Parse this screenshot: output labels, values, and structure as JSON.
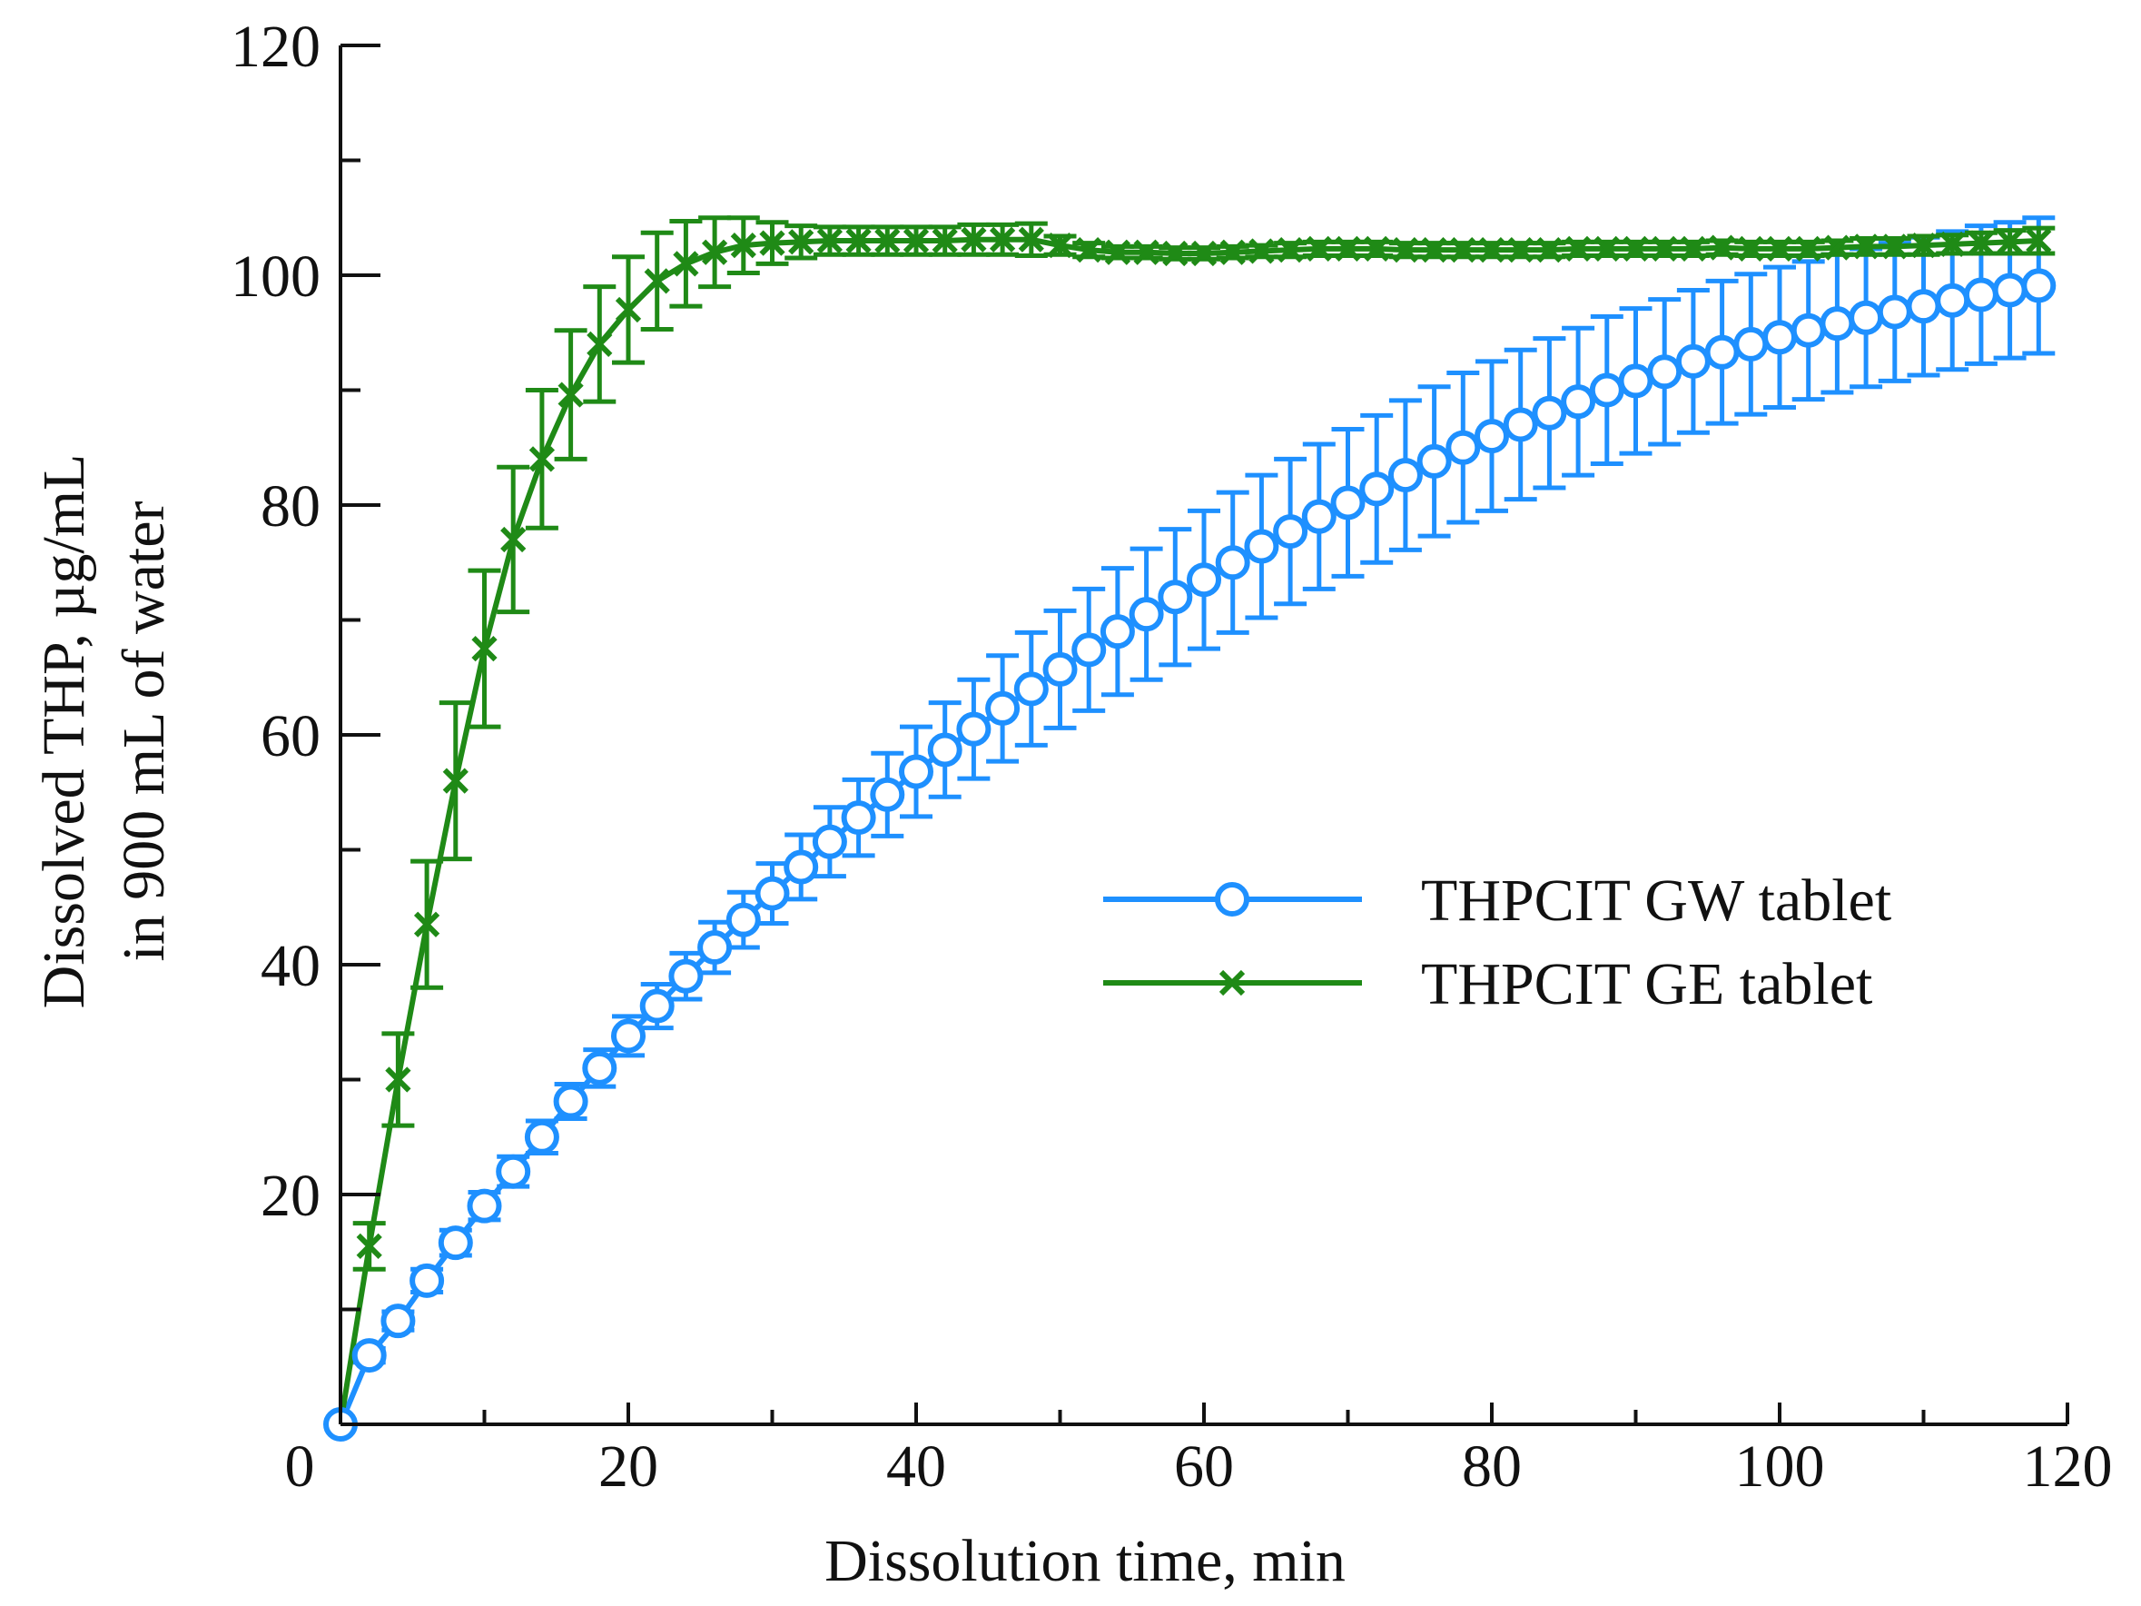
{
  "chart_data": {
    "type": "line",
    "title": "",
    "xlabel": "Dissolution time, min",
    "ylabel_line1": "Dissolved THP, µg/mL",
    "ylabel_line2": "in 900 mL of water",
    "xlim": [
      0,
      120
    ],
    "ylim": [
      0,
      120
    ],
    "x_major_ticks": [
      0,
      20,
      40,
      60,
      80,
      100,
      120
    ],
    "x_tick_labels": [
      "0",
      "20",
      "40",
      "60",
      "80",
      "100",
      "120"
    ],
    "y_major_ticks": [
      20,
      40,
      60,
      80,
      100,
      120
    ],
    "y_tick_labels": [
      "20",
      "40",
      "60",
      "80",
      "100",
      "120"
    ],
    "legend_position": "center-right",
    "series": [
      {
        "name": "THPCIT GW tablet",
        "color": "#1e90ff",
        "marker": "circle",
        "x": [
          0,
          2,
          4,
          6,
          8,
          10,
          12,
          14,
          16,
          18,
          20,
          22,
          24,
          26,
          28,
          30,
          32,
          34,
          36,
          38,
          40,
          42,
          44,
          46,
          48,
          50,
          52,
          54,
          56,
          58,
          60,
          62,
          64,
          66,
          68,
          70,
          72,
          74,
          76,
          78,
          80,
          82,
          84,
          86,
          88,
          90,
          92,
          94,
          96,
          98,
          100,
          102,
          104,
          106,
          108,
          110,
          112,
          114,
          116,
          118
        ],
        "y": [
          0,
          6.0,
          9.0,
          12.5,
          15.8,
          19.0,
          22.0,
          25.0,
          28.1,
          31.0,
          33.8,
          36.4,
          39.0,
          41.5,
          43.9,
          46.2,
          48.5,
          50.7,
          52.8,
          54.8,
          56.8,
          58.7,
          60.5,
          62.3,
          64.0,
          65.7,
          67.4,
          69.0,
          70.5,
          72.0,
          73.5,
          75.0,
          76.4,
          77.7,
          79.0,
          80.2,
          81.4,
          82.6,
          83.8,
          85.0,
          86.0,
          87.0,
          88.0,
          89.0,
          90.0,
          90.8,
          91.6,
          92.5,
          93.3,
          94.0,
          94.6,
          95.2,
          95.8,
          96.3,
          96.8,
          97.3,
          97.8,
          98.3,
          98.7,
          99.1
        ],
        "error": [
          0,
          0.6,
          0.8,
          1.0,
          1.1,
          1.2,
          1.3,
          1.4,
          1.5,
          1.6,
          1.7,
          1.9,
          2.0,
          2.2,
          2.4,
          2.6,
          2.8,
          3.0,
          3.3,
          3.6,
          3.9,
          4.1,
          4.3,
          4.6,
          4.9,
          5.1,
          5.3,
          5.5,
          5.7,
          5.9,
          6.0,
          6.1,
          6.2,
          6.3,
          6.3,
          6.4,
          6.4,
          6.5,
          6.5,
          6.5,
          6.5,
          6.5,
          6.5,
          6.4,
          6.4,
          6.3,
          6.3,
          6.2,
          6.2,
          6.1,
          6.1,
          6.0,
          6.0,
          6.0,
          6.0,
          6.0,
          6.0,
          6.0,
          5.9,
          5.9
        ]
      },
      {
        "name": "THPCIT GE tablet",
        "color": "#1f8a16",
        "marker": "x",
        "x": [
          0,
          2,
          4,
          6,
          8,
          10,
          12,
          14,
          16,
          18,
          20,
          22,
          24,
          26,
          28,
          30,
          32,
          34,
          36,
          38,
          40,
          42,
          44,
          46,
          48,
          50,
          52,
          54,
          56,
          58,
          60,
          62,
          64,
          66,
          68,
          70,
          72,
          74,
          76,
          78,
          80,
          82,
          84,
          86,
          88,
          90,
          92,
          94,
          96,
          98,
          100,
          102,
          104,
          106,
          108,
          110,
          112,
          114,
          116,
          118
        ],
        "y": [
          0,
          15.5,
          30.0,
          43.5,
          56.0,
          67.5,
          77.0,
          84.0,
          89.6,
          94.0,
          97.0,
          99.5,
          101.0,
          102.0,
          102.6,
          102.8,
          102.9,
          103.0,
          103.0,
          103.0,
          103.0,
          103.0,
          103.1,
          103.1,
          103.1,
          102.6,
          102.2,
          102.0,
          102.0,
          101.9,
          101.9,
          102.0,
          102.1,
          102.2,
          102.3,
          102.3,
          102.3,
          102.2,
          102.2,
          102.2,
          102.2,
          102.2,
          102.2,
          102.3,
          102.3,
          102.3,
          102.3,
          102.3,
          102.4,
          102.3,
          102.3,
          102.3,
          102.4,
          102.5,
          102.5,
          102.6,
          102.7,
          102.8,
          102.9,
          103.0
        ],
        "error": [
          0,
          2.0,
          4.0,
          5.5,
          6.8,
          6.8,
          6.3,
          6.0,
          5.6,
          5.0,
          4.6,
          4.2,
          3.7,
          3.0,
          2.4,
          1.8,
          1.4,
          1.2,
          1.2,
          1.2,
          1.2,
          1.2,
          1.3,
          1.3,
          1.4,
          0.8,
          0.6,
          0.5,
          0.5,
          0.5,
          0.5,
          0.5,
          0.5,
          0.6,
          0.6,
          0.6,
          0.6,
          0.6,
          0.6,
          0.6,
          0.6,
          0.6,
          0.6,
          0.6,
          0.6,
          0.6,
          0.6,
          0.6,
          0.6,
          0.6,
          0.6,
          0.6,
          0.6,
          0.7,
          0.7,
          0.8,
          0.8,
          0.9,
          1.0,
          1.1
        ]
      }
    ]
  }
}
